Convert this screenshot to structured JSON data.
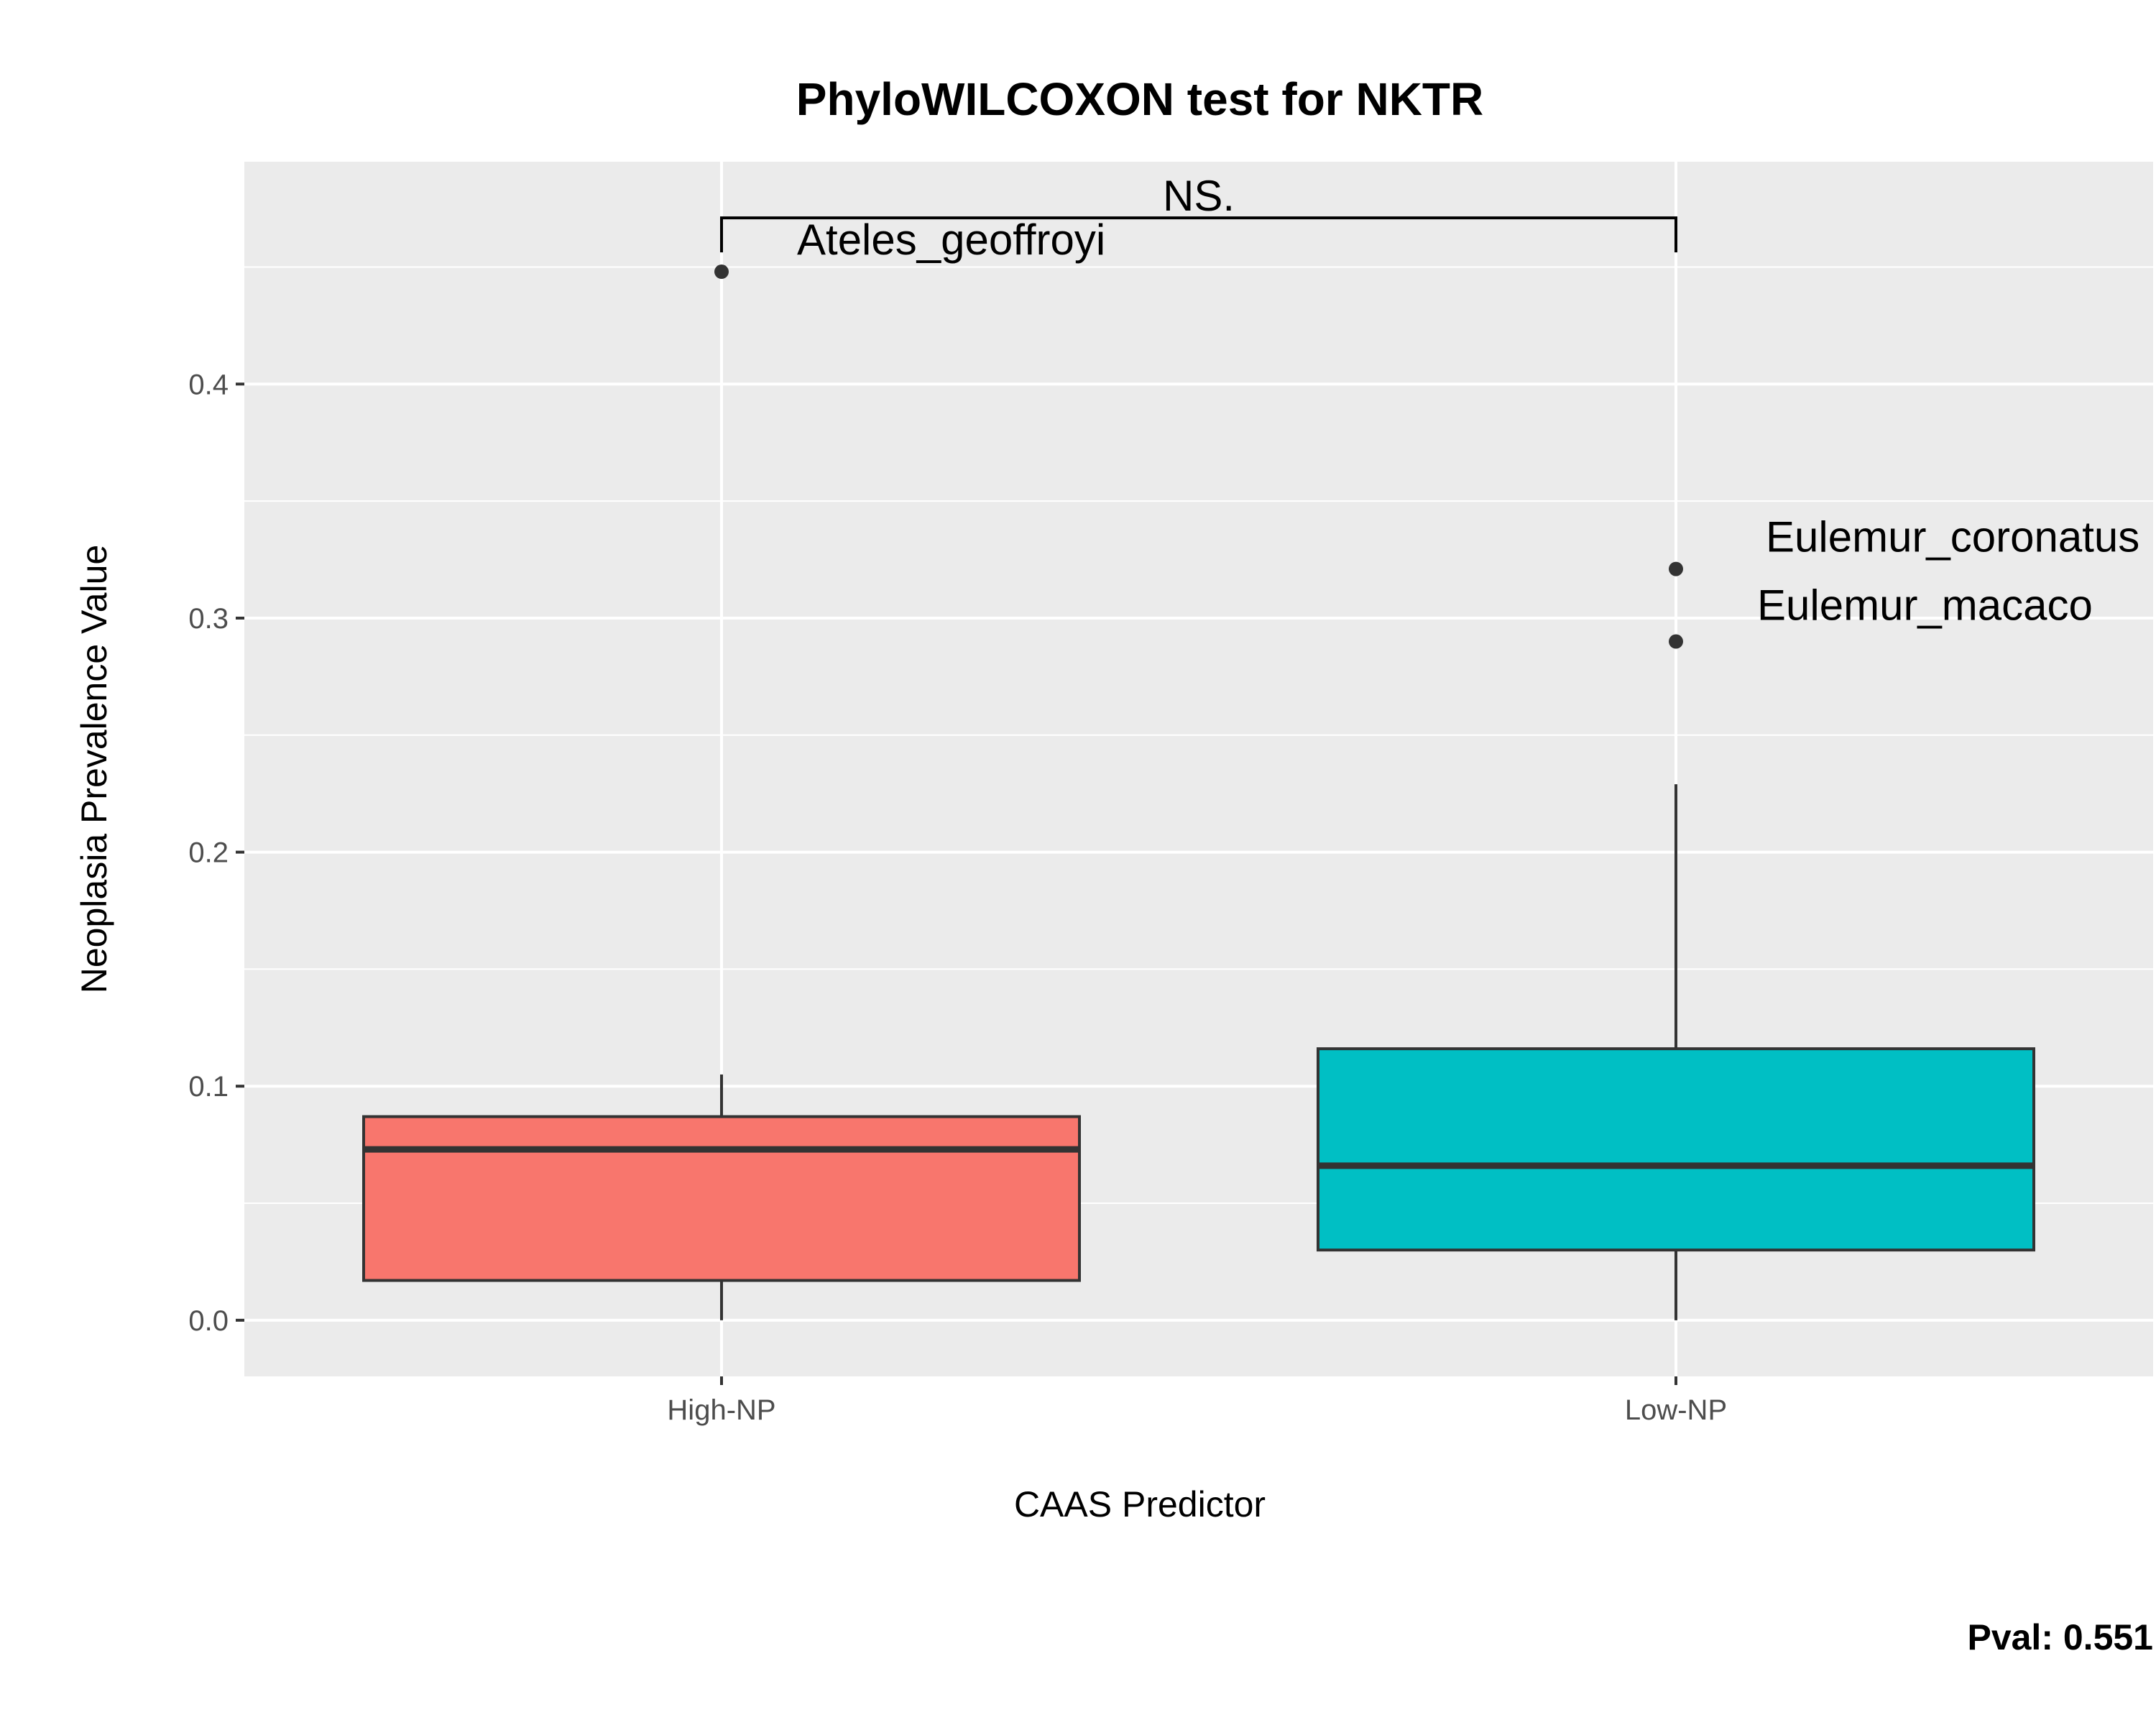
{
  "chart_data": {
    "type": "box",
    "title": "PhyloWILCOXON test for NKTR",
    "xlabel": "CAAS Predictor",
    "ylabel": "Neoplasia Prevalence Value",
    "categories": [
      "High-NP",
      "Low-NP"
    ],
    "yticks": [
      0.0,
      0.1,
      0.2,
      0.3,
      0.4
    ],
    "ytick_labels": [
      "0.0",
      "0.1",
      "0.2",
      "0.3",
      "0.4"
    ],
    "ylim": [
      -0.024,
      0.495
    ],
    "grid": true,
    "boxes": [
      {
        "category": "High-NP",
        "whisker_low": 0.0,
        "q1": 0.017,
        "median": 0.073,
        "q3": 0.087,
        "whisker_high": 0.105,
        "fill": "#F8766D",
        "outliers": [
          {
            "value": 0.448,
            "label": "Ateles_geoffroyi"
          }
        ]
      },
      {
        "category": "Low-NP",
        "whisker_low": 0.0,
        "q1": 0.03,
        "median": 0.066,
        "q3": 0.116,
        "whisker_high": 0.229,
        "fill": "#00BFC4",
        "outliers": [
          {
            "value": 0.321,
            "label": "Eulemur_coronatus"
          },
          {
            "value": 0.29,
            "label": "Eulemur_macaco"
          }
        ]
      }
    ],
    "significance": {
      "label": "NS.",
      "groups": [
        "High-NP",
        "Low-NP"
      ],
      "y": 0.471
    },
    "pvalue_label": "Pval:  0.551"
  },
  "colors": {
    "panel_background": "#EBEBEB",
    "grid": "#FFFFFF",
    "box_outline": "#333333"
  }
}
